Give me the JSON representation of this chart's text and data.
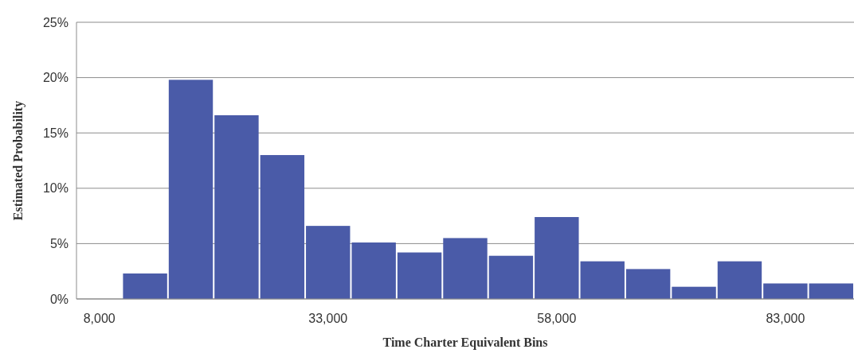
{
  "chart_data": {
    "type": "histogram",
    "xlabel": "Time Charter Equivalent Bins",
    "ylabel": "Estimated Probability",
    "bins": [
      10500,
      15500,
      20500,
      25500,
      30500,
      35500,
      40500,
      45500,
      50500,
      55500,
      60500,
      65500,
      70500,
      75500,
      80500,
      85500,
      90500
    ],
    "values": [
      2.3,
      19.8,
      16.6,
      13.0,
      6.6,
      5.1,
      4.2,
      5.5,
      3.9,
      7.4,
      3.4,
      2.7,
      1.1,
      3.4,
      1.4,
      1.4
    ],
    "color": "#4a5ba8",
    "xlim": [
      5500,
      90500
    ],
    "xticks": [
      {
        "value": 8000,
        "label": "8,000"
      },
      {
        "value": 33000,
        "label": "33,000"
      },
      {
        "value": 58000,
        "label": "58,000"
      },
      {
        "value": 83000,
        "label": "83,000"
      }
    ],
    "ylim": [
      0,
      25
    ],
    "yticks": [
      {
        "value": 0,
        "label": "0%"
      },
      {
        "value": 5,
        "label": "5%"
      },
      {
        "value": 10,
        "label": "10%"
      },
      {
        "value": 15,
        "label": "15%"
      },
      {
        "value": 20,
        "label": "20%"
      },
      {
        "value": 25,
        "label": "25%"
      }
    ],
    "grid": "y"
  }
}
